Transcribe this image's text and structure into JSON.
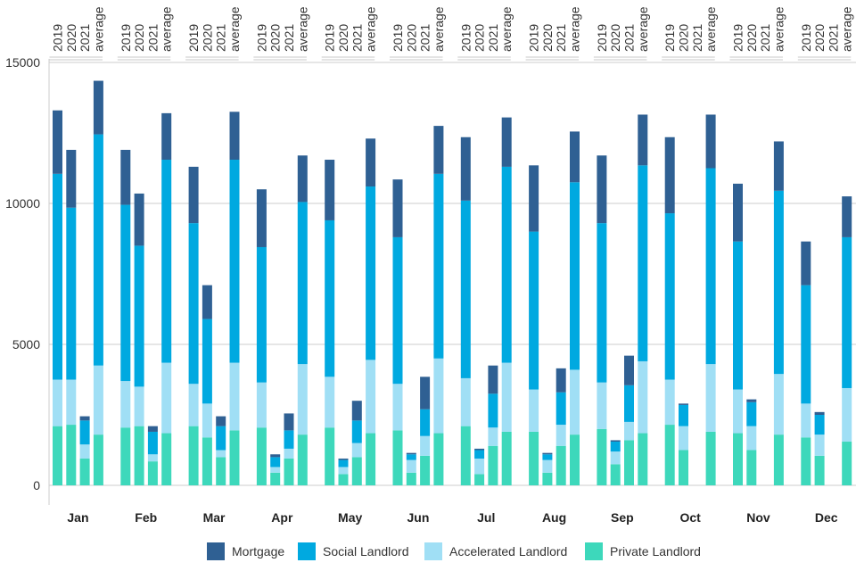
{
  "chart_data": {
    "type": "bar",
    "stacked": true,
    "title": "",
    "xlabel": "",
    "ylabel": "",
    "ylim": [
      0,
      15000
    ],
    "yticks": [
      0,
      5000,
      10000,
      15000
    ],
    "grid": true,
    "legend_position": "bottom",
    "sub_categories": [
      "2019",
      "2020",
      "2021",
      "average"
    ],
    "months": [
      "Jan",
      "Feb",
      "Mar",
      "Apr",
      "May",
      "Jun",
      "Jul",
      "Aug",
      "Sep",
      "Oct",
      "Nov",
      "Dec"
    ],
    "series_names": [
      "Private Landlord",
      "Accelerated Landlord",
      "Social Landlord",
      "Mortgage"
    ],
    "series_colors": [
      "#3dd8bb",
      "#a0dff5",
      "#00a9e0",
      "#2f6093"
    ],
    "legend_order": [
      3,
      2,
      1,
      0
    ],
    "data": {
      "Jan": [
        [
          2100,
          1650,
          7300,
          2250
        ],
        [
          2150,
          1600,
          6100,
          2050
        ],
        [
          950,
          500,
          850,
          150
        ],
        [
          1800,
          2450,
          8200,
          1900
        ]
      ],
      "Feb": [
        [
          2050,
          1650,
          6250,
          1950
        ],
        [
          2100,
          1400,
          5000,
          1850
        ],
        [
          850,
          250,
          800,
          200
        ],
        [
          1850,
          2500,
          7200,
          1650
        ]
      ],
      "Mar": [
        [
          2100,
          1500,
          5700,
          2000
        ],
        [
          1700,
          1200,
          3000,
          1200
        ],
        [
          1000,
          250,
          850,
          350
        ],
        [
          1950,
          2400,
          7200,
          1700
        ]
      ],
      "Apr": [
        [
          2050,
          1600,
          4800,
          2050
        ],
        [
          450,
          200,
          350,
          100
        ],
        [
          950,
          350,
          650,
          600
        ],
        [
          1800,
          2500,
          5750,
          1650
        ]
      ],
      "May": [
        [
          2050,
          1800,
          5550,
          2150
        ],
        [
          400,
          250,
          250,
          50
        ],
        [
          1000,
          500,
          800,
          700
        ],
        [
          1850,
          2600,
          6150,
          1700
        ]
      ],
      "Jun": [
        [
          1950,
          1650,
          5200,
          2050
        ],
        [
          450,
          450,
          200,
          50
        ],
        [
          1050,
          700,
          950,
          1150
        ],
        [
          1850,
          2650,
          6550,
          1700
        ]
      ],
      "Jul": [
        [
          2100,
          1700,
          6300,
          2250
        ],
        [
          400,
          550,
          300,
          50
        ],
        [
          1400,
          650,
          1200,
          1000
        ],
        [
          1900,
          2450,
          6950,
          1750
        ]
      ],
      "Aug": [
        [
          1900,
          1500,
          5600,
          2350
        ],
        [
          450,
          450,
          200,
          50
        ],
        [
          1400,
          750,
          1150,
          850
        ],
        [
          1800,
          2300,
          6650,
          1800
        ]
      ],
      "Sep": [
        [
          2000,
          1650,
          5650,
          2400
        ],
        [
          750,
          450,
          350,
          50
        ],
        [
          1600,
          650,
          1300,
          1050
        ],
        [
          1850,
          2550,
          6950,
          1800
        ]
      ],
      "Oct": [
        [
          2150,
          1600,
          5900,
          2700
        ],
        [
          1250,
          850,
          750,
          50
        ],
        [
          0,
          0,
          0,
          0
        ],
        [
          1900,
          2400,
          6950,
          1900
        ]
      ],
      "Nov": [
        [
          1850,
          1550,
          5250,
          2050
        ],
        [
          1250,
          850,
          850,
          100
        ],
        [
          0,
          0,
          0,
          0
        ],
        [
          1800,
          2150,
          6500,
          1750
        ]
      ],
      "Dec": [
        [
          1700,
          1200,
          4200,
          1550
        ],
        [
          1050,
          750,
          700,
          100
        ],
        [
          0,
          0,
          0,
          0
        ],
        [
          1550,
          1900,
          5350,
          1450
        ]
      ]
    }
  }
}
